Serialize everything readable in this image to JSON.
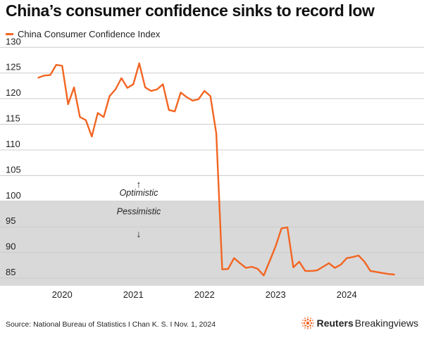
{
  "title": "China’s consumer confidence sinks to record low",
  "legend": [
    {
      "label": "China Consumer Confidence Index",
      "color": "#f26522"
    }
  ],
  "footer": {
    "source": "Source: National Bureau of Statistics I Chan K. S. I Nov. 1, 2024",
    "brand_bold": "Reuters",
    "brand_regular": "Breakingviews",
    "brand_icon": "reuters-dot-logo-icon"
  },
  "colors": {
    "line": "#f26522",
    "pessimistic_band": "#d9d9d9",
    "grid": "#cccccc",
    "logo": "#f26522"
  },
  "chart_data": {
    "type": "line",
    "title": "China’s consumer confidence sinks to record low",
    "xlabel": "",
    "ylabel": "",
    "x_ticks": [
      "2020",
      "2021",
      "2022",
      "2023",
      "2024"
    ],
    "y_ticks": [
      85,
      90,
      95,
      100,
      105,
      110,
      115,
      120,
      125,
      130
    ],
    "ylim": [
      83.5,
      131
    ],
    "xlim": [
      "2019-10",
      "2024-10"
    ],
    "grid": true,
    "legend_position": "top-left",
    "shaded_region": {
      "from": 83.5,
      "to": 100,
      "color": "#d9d9d9"
    },
    "annotations": [
      {
        "text": "Optimistic",
        "arrow": "↑"
      },
      {
        "text": "Pessimistic",
        "arrow": "↓"
      }
    ],
    "series": [
      {
        "name": "China Consumer Confidence Index",
        "color": "#f26522",
        "x": [
          "2019-09",
          "2019-10",
          "2019-11",
          "2019-12",
          "2020-01",
          "2020-02",
          "2020-03",
          "2020-04",
          "2020-05",
          "2020-06",
          "2020-07",
          "2020-08",
          "2020-09",
          "2020-10",
          "2020-11",
          "2020-12",
          "2021-01",
          "2021-02",
          "2021-03",
          "2021-04",
          "2021-05",
          "2021-06",
          "2021-07",
          "2021-08",
          "2021-09",
          "2021-10",
          "2021-11",
          "2021-12",
          "2022-01",
          "2022-02",
          "2022-03",
          "2022-04",
          "2022-05",
          "2022-06",
          "2022-07",
          "2022-08",
          "2022-09",
          "2022-10",
          "2022-11",
          "2022-12",
          "2023-01",
          "2023-02",
          "2023-03",
          "2023-04",
          "2023-05",
          "2023-06",
          "2023-07",
          "2023-08",
          "2023-09",
          "2023-10",
          "2023-11",
          "2023-12",
          "2024-01",
          "2024-02",
          "2024-03",
          "2024-04",
          "2024-05",
          "2024-06",
          "2024-07",
          "2024-08",
          "2024-09"
        ],
        "values": [
          124.1,
          124.5,
          124.6,
          126.6,
          126.4,
          118.9,
          122.2,
          116.4,
          115.8,
          112.6,
          117.2,
          116.4,
          120.5,
          121.8,
          124.0,
          122.1,
          122.8,
          126.9,
          122.2,
          121.5,
          121.8,
          122.8,
          117.8,
          117.5,
          121.2,
          120.3,
          119.6,
          119.9,
          121.5,
          120.5,
          113.2,
          86.7,
          86.8,
          88.9,
          87.9,
          87.0,
          87.2,
          86.8,
          85.5,
          88.3,
          91.2,
          94.7,
          94.9,
          87.1,
          88.2,
          86.4,
          86.4,
          86.5,
          87.2,
          87.9,
          87.0,
          87.6,
          88.9,
          89.1,
          89.4,
          88.2,
          86.4,
          86.2,
          86.0,
          85.8,
          85.7
        ]
      }
    ]
  }
}
